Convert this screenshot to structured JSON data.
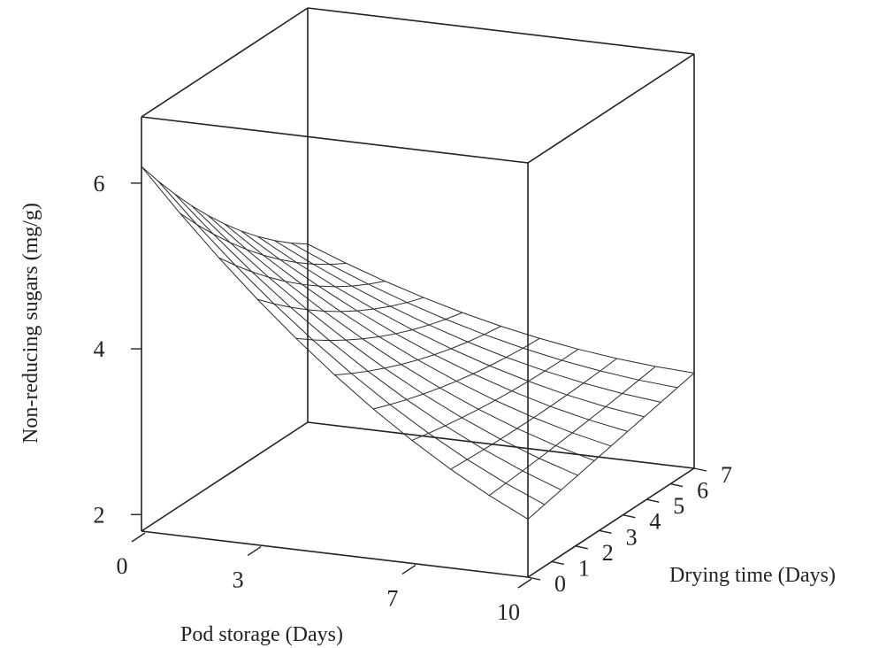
{
  "chart_data": {
    "type": "surface3d",
    "xlabel": "Pod storage (Days)",
    "ylabel": "Drying time (Days)",
    "zlabel": "Non-reducing sugars (mg/g)",
    "x_ticks": [
      "0",
      "3",
      "7",
      "10"
    ],
    "y_ticks": [
      "0",
      "1",
      "2",
      "3",
      "4",
      "5",
      "6",
      "7"
    ],
    "z_ticks": [
      "2",
      "4",
      "6"
    ],
    "xlim": [
      0,
      10
    ],
    "ylim": [
      0,
      7
    ],
    "zlim": [
      1.8,
      6.8
    ],
    "grid_x": [
      0,
      1,
      2,
      3,
      4,
      5,
      6,
      7,
      8,
      9,
      10
    ],
    "grid_y": [
      0,
      0.7,
      1.4,
      2.1,
      2.8,
      3.5,
      4.2,
      4.9,
      5.6,
      6.3,
      7
    ],
    "surface_corners": {
      "pod0_dry0": 6.2,
      "pod10_dry0": 2.5,
      "pod0_dry7": 3.95,
      "pod10_dry7": 2.95
    }
  }
}
